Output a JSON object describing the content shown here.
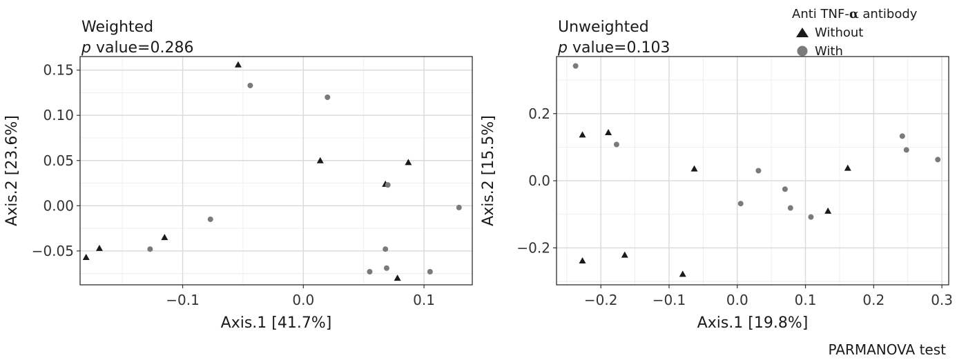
{
  "legend": {
    "title_prefix": "Anti TNF-",
    "title_symbol": "α",
    "title_suffix": " antibody",
    "items": [
      {
        "label": "Without",
        "shape": "triangle",
        "color": "#1a1a1a"
      },
      {
        "label": "With",
        "shape": "circle",
        "color": "#7a7a7a"
      }
    ]
  },
  "footer": "PARMANOVA test",
  "chart_data": [
    {
      "type": "scatter",
      "title": "Weighted",
      "p_label": "p",
      "p_rest": " value=0.286",
      "xlabel": "Axis.1 [41.7%]",
      "ylabel": "Axis.2 [23.6%]",
      "xlim": [
        -0.185,
        0.14
      ],
      "ylim": [
        -0.0875,
        0.165
      ],
      "xticks": [
        -0.1,
        0.0,
        0.1
      ],
      "xtick_labels": [
        "−0.1",
        "0.0",
        "0.1"
      ],
      "yticks": [
        -0.05,
        0.0,
        0.05,
        0.1,
        0.15
      ],
      "ytick_labels": [
        "−0.05",
        "0.00",
        "0.05",
        "0.10",
        "0.15"
      ],
      "grid": true,
      "series": [
        {
          "name": "Without",
          "shape": "triangle",
          "points": [
            [
              -0.18,
              -0.057
            ],
            [
              -0.169,
              -0.047
            ],
            [
              -0.115,
              -0.035
            ],
            [
              -0.054,
              0.156
            ],
            [
              0.014,
              0.05
            ],
            [
              0.068,
              0.024
            ],
            [
              0.087,
              0.048
            ],
            [
              0.078,
              -0.08
            ]
          ]
        },
        {
          "name": "With",
          "shape": "circle",
          "points": [
            [
              -0.127,
              -0.048
            ],
            [
              -0.077,
              -0.015
            ],
            [
              -0.044,
              0.133
            ],
            [
              0.02,
              0.12
            ],
            [
              0.07,
              0.023
            ],
            [
              0.068,
              -0.048
            ],
            [
              0.069,
              -0.069
            ],
            [
              0.055,
              -0.073
            ],
            [
              0.105,
              -0.073
            ],
            [
              0.129,
              -0.002
            ]
          ]
        }
      ]
    },
    {
      "type": "scatter",
      "title": "Unweighted",
      "p_label": "p",
      "p_rest": " value=0.103",
      "xlabel": "Axis.1 [19.8%]",
      "ylabel": "Axis.2 [15.5%]",
      "xlim": [
        -0.265,
        0.31
      ],
      "ylim": [
        -0.31,
        0.37
      ],
      "xticks": [
        -0.2,
        -0.1,
        0.0,
        0.1,
        0.2,
        0.3
      ],
      "xtick_labels": [
        "−0.2",
        "−0.1",
        "0.0",
        "0.1",
        "0.2",
        "0.3"
      ],
      "yticks": [
        -0.2,
        0.0,
        0.2
      ],
      "ytick_labels": [
        "−0.2",
        "0.0",
        "0.2"
      ],
      "grid": true,
      "series": [
        {
          "name": "Without",
          "shape": "triangle",
          "points": [
            [
              -0.227,
              0.137
            ],
            [
              -0.189,
              0.144
            ],
            [
              -0.227,
              -0.238
            ],
            [
              -0.165,
              -0.221
            ],
            [
              -0.063,
              0.036
            ],
            [
              -0.08,
              -0.278
            ],
            [
              0.133,
              -0.09
            ],
            [
              0.162,
              0.038
            ]
          ]
        },
        {
          "name": "With",
          "shape": "circle",
          "points": [
            [
              -0.237,
              0.342
            ],
            [
              -0.177,
              0.108
            ],
            [
              0.005,
              -0.068
            ],
            [
              0.031,
              0.03
            ],
            [
              0.07,
              -0.025
            ],
            [
              0.078,
              -0.081
            ],
            [
              0.108,
              -0.108
            ],
            [
              0.242,
              0.133
            ],
            [
              0.248,
              0.092
            ],
            [
              0.294,
              0.063
            ]
          ]
        }
      ]
    }
  ]
}
